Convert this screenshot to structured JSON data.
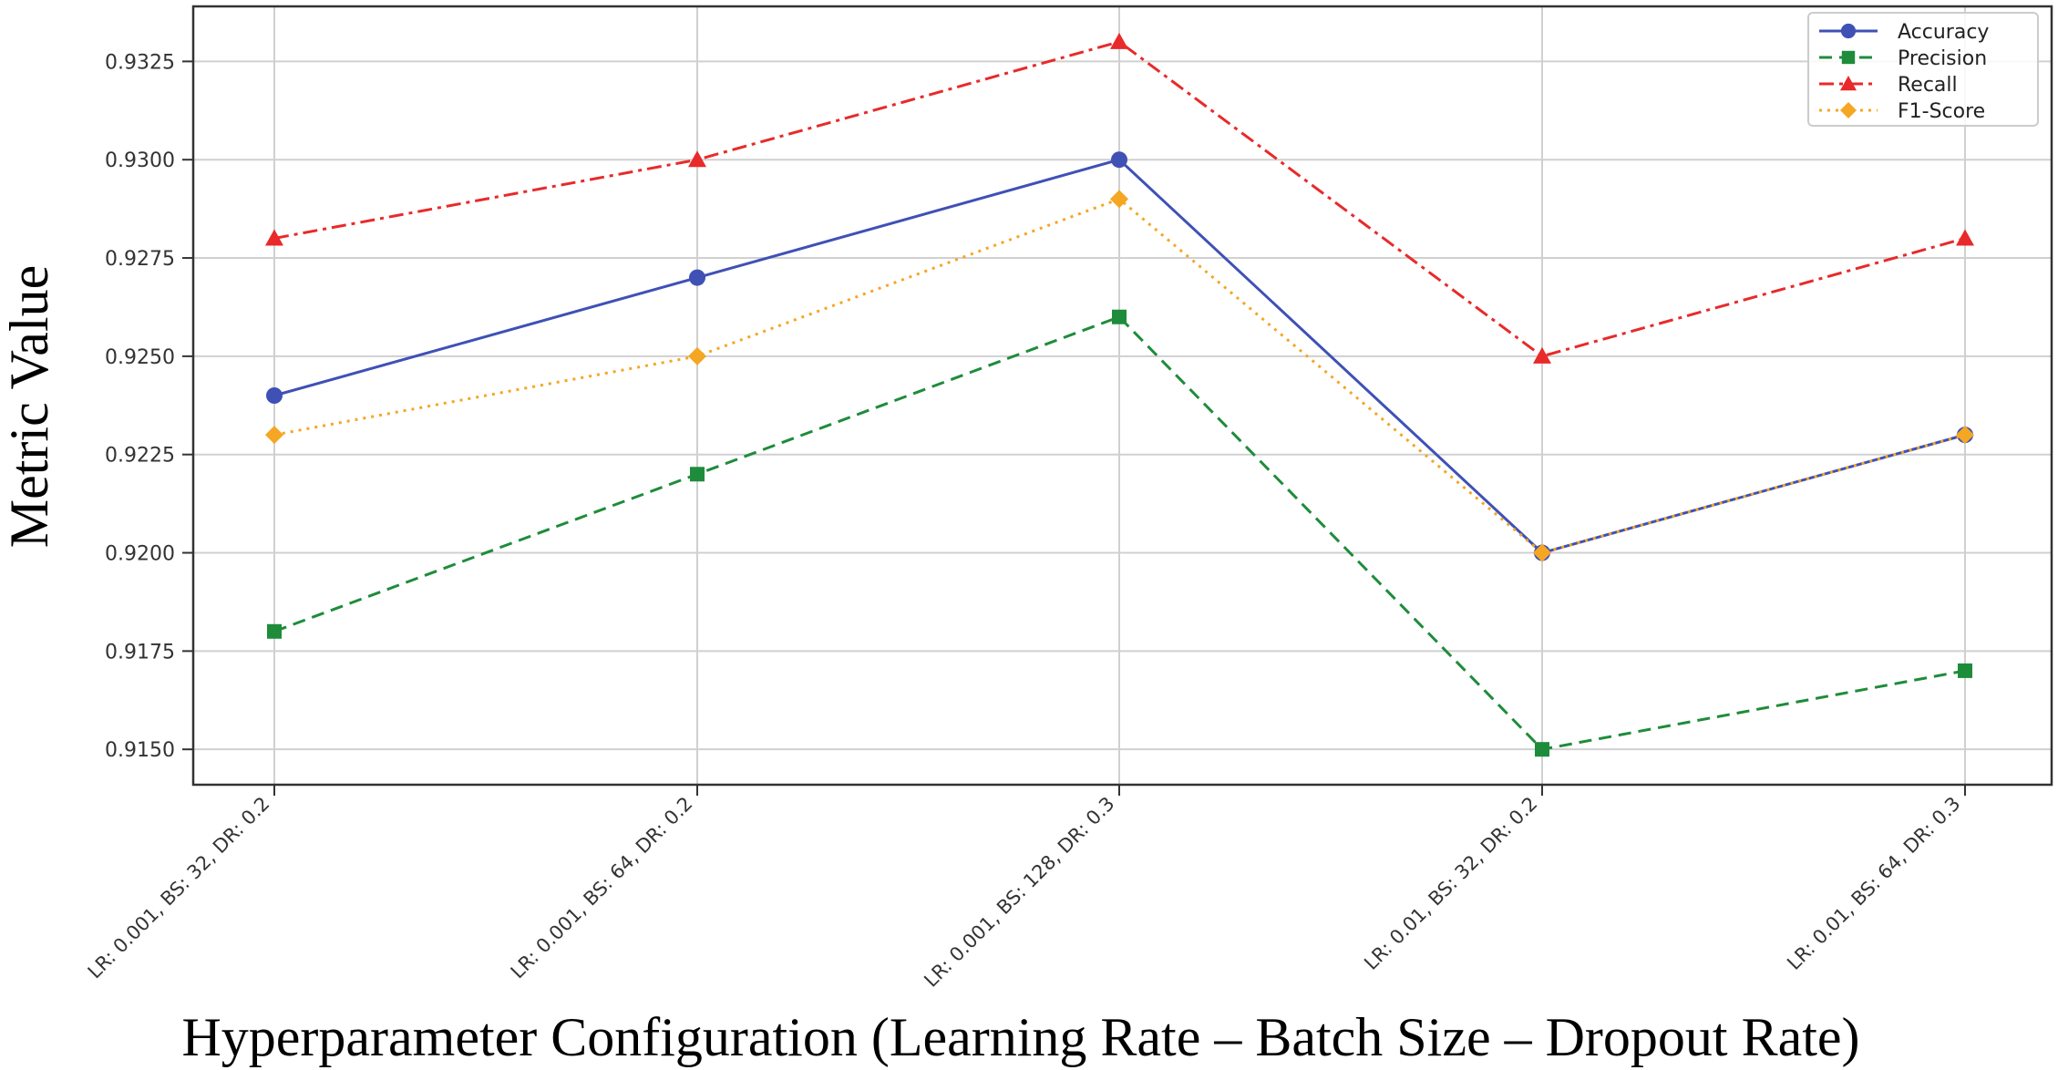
{
  "chart_data": {
    "type": "line",
    "title": "",
    "xlabel": "Hyperparameter Configuration (Learning Rate – Batch Size – Dropout Rate)",
    "ylabel": "Metric Value",
    "categories": [
      "LR: 0.001, BS: 32, DR: 0.2",
      "LR: 0.001, BS: 64, DR: 0.2",
      "LR: 0.001, BS: 128, DR: 0.3",
      "LR: 0.01, BS: 32, DR: 0.2",
      "LR: 0.01, BS: 64, DR: 0.3"
    ],
    "ylim": [
      0.9141,
      0.9339
    ],
    "yticks": [
      "0.9150",
      "0.9175",
      "0.9200",
      "0.9225",
      "0.9250",
      "0.9275",
      "0.9300",
      "0.9325"
    ],
    "grid": true,
    "legend_position": "top-right",
    "series": [
      {
        "name": "Accuracy",
        "values": [
          0.924,
          0.927,
          0.93,
          0.92,
          0.923
        ],
        "color": "#3f51b5",
        "dash": "solid",
        "marker": "circle"
      },
      {
        "name": "Precision",
        "values": [
          0.918,
          0.922,
          0.926,
          0.915,
          0.917
        ],
        "color": "#1e8c3a",
        "dash": "dashed",
        "marker": "square"
      },
      {
        "name": "Recall",
        "values": [
          0.928,
          0.93,
          0.933,
          0.925,
          0.928
        ],
        "color": "#e82a2a",
        "dash": "dashdot",
        "marker": "triangle"
      },
      {
        "name": "F1-Score",
        "values": [
          0.923,
          0.925,
          0.929,
          0.92,
          0.923
        ],
        "color": "#f5a623",
        "dash": "dotted",
        "marker": "diamond"
      }
    ]
  }
}
